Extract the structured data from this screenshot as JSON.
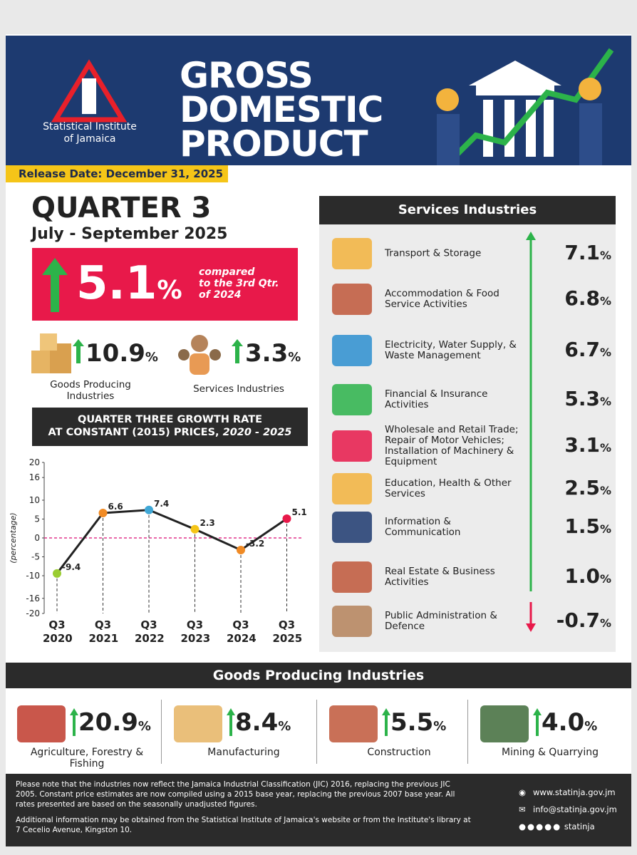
{
  "header": {
    "org_line1": "Statistical Institute",
    "org_line2": "of Jamaica",
    "title_line1": "GROSS",
    "title_line2": "DOMESTIC",
    "title_line3": "PRODUCT",
    "release": "Release Date: December 31, 2025"
  },
  "unit": "%",
  "quarter": {
    "title": "QUARTER 3",
    "period": "July - September 2025",
    "headline": "5.1",
    "caption_line1": "compared",
    "caption_line2": "to the 3rd Qtr.",
    "caption_line3": "of 2024"
  },
  "summary": [
    {
      "value": "10.9",
      "name_line1": "Goods Producing",
      "name_line2": "Industries"
    },
    {
      "value": "3.3",
      "name_line1": "Services Industries"
    }
  ],
  "chart_data": {
    "type": "line",
    "title": "QUARTER THREE GROWTH RATE",
    "subtitle": "AT CONSTANT (2015) PRICES,",
    "period": "2020 - 2025",
    "ylabel": "(percentage)",
    "categories": [
      "Q3 2020",
      "Q3 2021",
      "Q3 2022",
      "Q3 2023",
      "Q3 2024",
      "Q3 2025"
    ],
    "values": [
      -9.4,
      6.6,
      7.4,
      2.3,
      -3.2,
      5.1
    ],
    "point_colors": [
      "#9acd32",
      "#f08a24",
      "#3fa7d6",
      "#f5c518",
      "#f08a24",
      "#e8194a"
    ],
    "color": "#222222",
    "ylim": [
      -20,
      20
    ],
    "yticks": [
      20,
      16,
      10,
      5,
      0,
      -5,
      -10,
      -16,
      -20
    ],
    "zero_line_color": "#e0338a"
  },
  "services": {
    "title": "Services Industries",
    "items": [
      {
        "name": "Transport & Storage",
        "value": "7.1"
      },
      {
        "name": "Accommodation & Food Service Activities",
        "value": "6.8"
      },
      {
        "name": "Electricity, Water Supply, & Waste Management",
        "value": "6.7"
      },
      {
        "name": "Financial & Insurance Activities",
        "value": "5.3"
      },
      {
        "name": "Wholesale and Retail Trade; Repair of Motor Vehicles; Installation of Machinery & Equipment",
        "value": "3.1"
      },
      {
        "name": "Education, Health & Other Services",
        "value": "2.5"
      },
      {
        "name": "Information & Communication",
        "value": "1.5"
      },
      {
        "name": "Real Estate & Business Activities",
        "value": "1.0"
      },
      {
        "name": "Public Administration & Defence",
        "value": "-0.7"
      }
    ]
  },
  "goods": {
    "title": "Goods Producing Industries",
    "items": [
      {
        "name": "Agriculture, Forestry & Fishing",
        "value": "20.9"
      },
      {
        "name": "Manufacturing",
        "value": "8.4"
      },
      {
        "name": "Construction",
        "value": "5.5"
      },
      {
        "name": "Mining & Quarrying",
        "value": "4.0"
      }
    ]
  },
  "footer": {
    "note1": "Please note that the industries now reflect the Jamaica Industrial Classification (JIC) 2016, replacing the previous JIC 2005. Constant price estimates are now compiled using a 2015 base year, replacing the previous 2007 base year. All rates presented are based on the seasonally unadjusted figures.",
    "note2": "Additional information may be obtained from the Statistical Institute of Jamaica's website or from the Institute's library at 7 Cecelio Avenue, Kingston 10.",
    "website": "www.statinja.gov.jm",
    "email": "info@statinja.gov.jm",
    "social": "statinja"
  }
}
